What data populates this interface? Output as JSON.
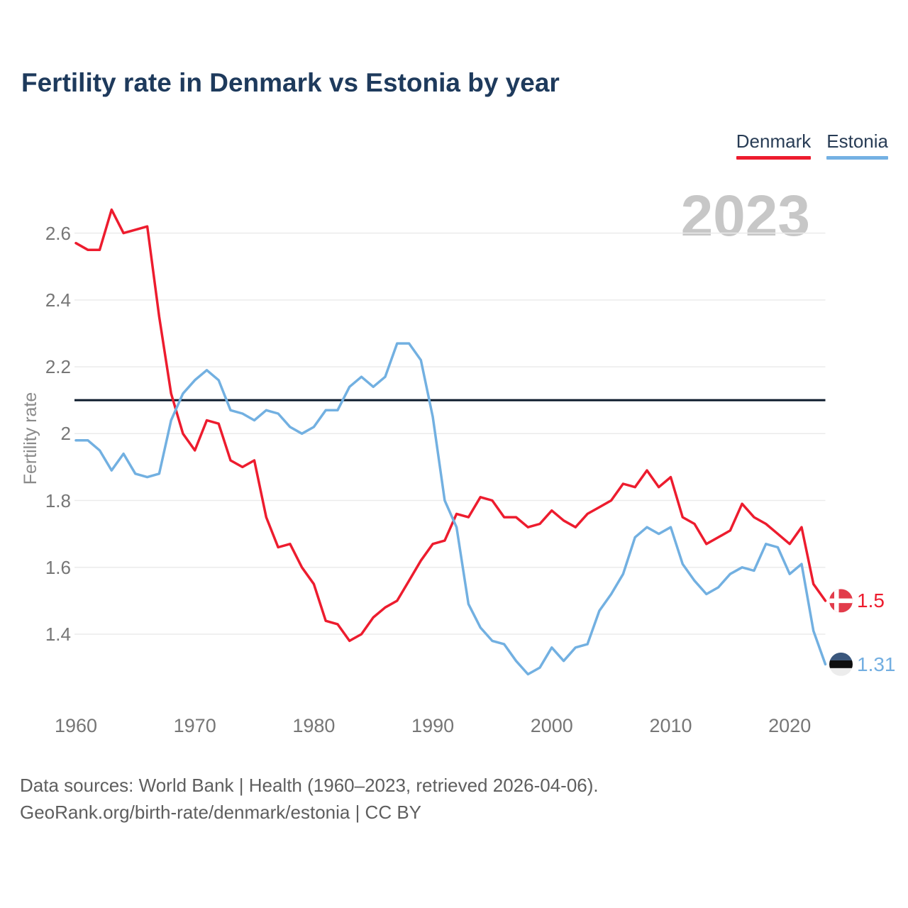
{
  "title": "Fertility rate in Denmark vs Estonia by year",
  "watermark": "2023",
  "legend": {
    "items": [
      {
        "label": "Denmark",
        "color": "#ed1c2e"
      },
      {
        "label": "Estonia",
        "color": "#74b1e3"
      }
    ]
  },
  "y_axis": {
    "label": "Fertility rate",
    "tick_labels": [
      "2.6",
      "2.4",
      "2.2",
      "2",
      "1.8",
      "1.6",
      "1.4"
    ]
  },
  "x_axis": {
    "tick_labels": [
      "1960",
      "1970",
      "1980",
      "1990",
      "2000",
      "2010",
      "2020"
    ]
  },
  "end_labels": [
    {
      "series": "Denmark",
      "value": "1.5",
      "color": "#ed1c2e",
      "flag_icon": "denmark-flag-icon"
    },
    {
      "series": "Estonia",
      "value": "1.31",
      "color": "#72aee1",
      "flag_icon": "estonia-flag-icon"
    }
  ],
  "footer": {
    "line1": "Data sources: World Bank | Health (1960–2023, retrieved 2026-04-06).",
    "line2": "GeoRank.org/birth-rate/denmark/estonia | CC BY"
  },
  "chart_data": {
    "type": "line",
    "title": "Fertility rate in Denmark vs Estonia by year",
    "xlabel": "",
    "ylabel": "Fertility rate",
    "x_start": 1960,
    "x_end": 2023,
    "xlim": [
      1960,
      2023
    ],
    "ylim": [
      1.25,
      2.72
    ],
    "y_ticks": [
      2.6,
      2.4,
      2.2,
      2.0,
      1.8,
      1.6,
      1.4
    ],
    "x_ticks": [
      1960,
      1970,
      1980,
      1990,
      2000,
      2010,
      2020
    ],
    "grid": true,
    "legend_position": "top-right",
    "reference_line": {
      "value": 2.1,
      "color": "#0c1a2b"
    },
    "series": [
      {
        "name": "Denmark",
        "color": "#ed1c2e",
        "end_value": 1.5,
        "values": [
          2.57,
          2.55,
          2.55,
          2.67,
          2.6,
          2.61,
          2.62,
          2.35,
          2.12,
          2.0,
          1.95,
          2.04,
          2.03,
          1.92,
          1.9,
          1.92,
          1.75,
          1.66,
          1.67,
          1.6,
          1.55,
          1.44,
          1.43,
          1.38,
          1.4,
          1.45,
          1.48,
          1.5,
          1.56,
          1.62,
          1.67,
          1.68,
          1.76,
          1.75,
          1.81,
          1.8,
          1.75,
          1.75,
          1.72,
          1.73,
          1.77,
          1.74,
          1.72,
          1.76,
          1.78,
          1.8,
          1.85,
          1.84,
          1.89,
          1.84,
          1.87,
          1.75,
          1.73,
          1.67,
          1.69,
          1.71,
          1.79,
          1.75,
          1.73,
          1.7,
          1.67,
          1.72,
          1.55,
          1.5
        ]
      },
      {
        "name": "Estonia",
        "color": "#72b0e1",
        "end_value": 1.31,
        "values": [
          1.98,
          1.98,
          1.95,
          1.89,
          1.94,
          1.88,
          1.87,
          1.88,
          2.04,
          2.12,
          2.16,
          2.19,
          2.16,
          2.07,
          2.06,
          2.04,
          2.07,
          2.06,
          2.02,
          2.0,
          2.02,
          2.07,
          2.07,
          2.14,
          2.17,
          2.14,
          2.17,
          2.27,
          2.27,
          2.22,
          2.05,
          1.8,
          1.72,
          1.49,
          1.42,
          1.38,
          1.37,
          1.32,
          1.28,
          1.3,
          1.36,
          1.32,
          1.36,
          1.37,
          1.47,
          1.52,
          1.58,
          1.69,
          1.72,
          1.7,
          1.72,
          1.61,
          1.56,
          1.52,
          1.54,
          1.58,
          1.6,
          1.59,
          1.67,
          1.66,
          1.58,
          1.61,
          1.41,
          1.31
        ]
      }
    ]
  }
}
